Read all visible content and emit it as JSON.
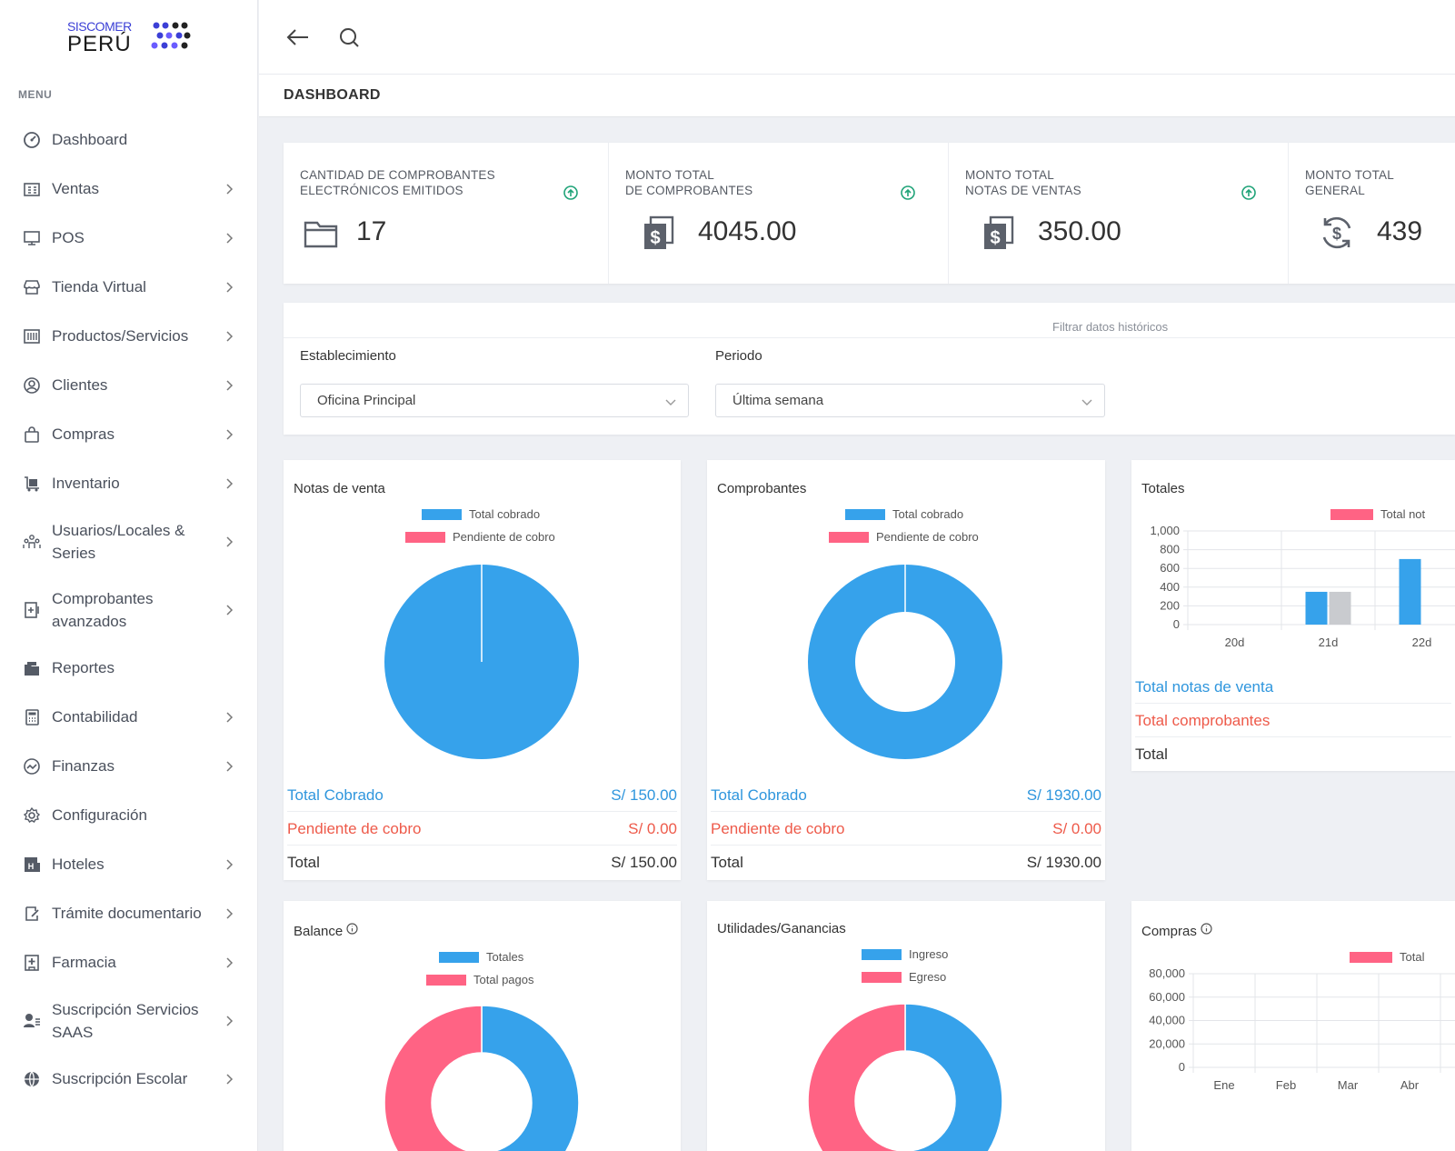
{
  "brand": {
    "top": "SISCOMER",
    "bottom": "PERÚ"
  },
  "sidebar": {
    "menu_title": "MENU",
    "items": [
      {
        "label": "Dashboard",
        "icon": "dashboard-icon",
        "has_children": false
      },
      {
        "label": "Ventas",
        "icon": "ventas-icon",
        "has_children": true
      },
      {
        "label": "POS",
        "icon": "monitor-icon",
        "has_children": true
      },
      {
        "label": "Tienda Virtual",
        "icon": "store-icon",
        "has_children": true
      },
      {
        "label": "Productos/Servicios",
        "icon": "products-icon",
        "has_children": true
      },
      {
        "label": "Clientes",
        "icon": "client-icon",
        "has_children": true
      },
      {
        "label": "Compras",
        "icon": "bag-icon",
        "has_children": true
      },
      {
        "label": "Inventario",
        "icon": "inventory-icon",
        "has_children": true
      },
      {
        "label": "Usuarios/Locales & Series",
        "icon": "users-icon",
        "has_children": true
      },
      {
        "label": "Comprobantes avanzados",
        "icon": "document-advanced-icon",
        "has_children": true
      },
      {
        "label": "Reportes",
        "icon": "reports-icon",
        "has_children": false
      },
      {
        "label": "Contabilidad",
        "icon": "calculator-icon",
        "has_children": true
      },
      {
        "label": "Finanzas",
        "icon": "finance-icon",
        "has_children": true
      },
      {
        "label": "Configuración",
        "icon": "settings-icon",
        "has_children": false
      },
      {
        "label": "Hoteles",
        "icon": "hotel-icon",
        "has_children": true
      },
      {
        "label": "Trámite documentario",
        "icon": "document-edit-icon",
        "has_children": true
      },
      {
        "label": "Farmacia",
        "icon": "pharmacy-icon",
        "has_children": true
      },
      {
        "label": "Suscripción Servicios SAAS",
        "icon": "subscription-icon",
        "has_children": true
      },
      {
        "label": "Suscripción Escolar",
        "icon": "school-icon",
        "has_children": true
      }
    ]
  },
  "header": {
    "title": "DASHBOARD"
  },
  "stats": [
    {
      "label_1": "CANTIDAD DE COMPROBANTES",
      "label_2": "ELECTRÓNICOS EMITIDOS",
      "value": "17",
      "icon": "folder-icon"
    },
    {
      "label_1": "MONTO TOTAL",
      "label_2": "DE COMPROBANTES",
      "value": "4045.00",
      "icon": "money-copy-icon"
    },
    {
      "label_1": "MONTO TOTAL",
      "label_2": "NOTAS DE VENTAS",
      "value": "350.00",
      "icon": "money-copy-icon"
    },
    {
      "label_1": "MONTO TOTAL",
      "label_2": "GENERAL",
      "value": "439",
      "icon": "coin-exchange-icon"
    }
  ],
  "filter": {
    "caption": "Filtrar datos históricos",
    "establecimiento_label": "Establecimiento",
    "establecimiento_value": "Oficina Principal",
    "periodo_label": "Periodo",
    "periodo_value": "Última semana"
  },
  "colors": {
    "blue": "#36a2eb",
    "pink": "#ff6384",
    "grey": "#c9cbcf",
    "accent_blue": "#2f96dd",
    "accent_red": "#ee5a4a"
  },
  "notas_card": {
    "title": "Notas de venta",
    "legend": [
      "Total cobrado",
      "Pendiente de cobro"
    ],
    "rows": [
      {
        "label": "Total Cobrado",
        "value": "S/ 150.00"
      },
      {
        "label": "Pendiente de cobro",
        "value": "S/ 0.00"
      },
      {
        "label": "Total",
        "value": "S/ 150.00"
      }
    ]
  },
  "comprobantes_card": {
    "title": "Comprobantes",
    "legend": [
      "Total cobrado",
      "Pendiente de cobro"
    ],
    "rows": [
      {
        "label": "Total Cobrado",
        "value": "S/ 1930.00"
      },
      {
        "label": "Pendiente de cobro",
        "value": "S/ 0.00"
      },
      {
        "label": "Total",
        "value": "S/ 1930.00"
      }
    ]
  },
  "totales_card": {
    "title": "Totales",
    "legend": [
      "Total not"
    ],
    "rows": [
      "Total notas de venta",
      "Total comprobantes",
      "Total"
    ]
  },
  "balance_card": {
    "title": "Balance",
    "legend": [
      "Totales",
      "Total pagos"
    ]
  },
  "utilidades_card": {
    "title": "Utilidades/Ganancias",
    "legend": [
      "Ingreso",
      "Egreso"
    ]
  },
  "compras_card": {
    "title": "Compras",
    "legend": [
      "Total"
    ]
  },
  "chart_data": [
    {
      "type": "pie",
      "labels": [
        "Total cobrado",
        "Pendiente de cobro"
      ],
      "values": [
        150.0,
        0.0
      ]
    },
    {
      "type": "pie",
      "labels": [
        "Total cobrado",
        "Pendiente de cobro"
      ],
      "values": [
        1930.0,
        0.0
      ]
    },
    {
      "type": "bar",
      "categories": [
        "20d",
        "21d",
        "22d"
      ],
      "y_ticks": [
        "1,000",
        "800",
        "600",
        "400",
        "200",
        "0"
      ],
      "ylim": [
        0,
        1000
      ],
      "series": [
        {
          "values": [
            0,
            350,
            700
          ]
        },
        {
          "values": [
            0,
            350,
            0
          ]
        }
      ],
      "grid": true
    },
    {
      "type": "pie",
      "labels": [
        "Totales",
        "Total pagos"
      ],
      "values": [
        50,
        50
      ]
    },
    {
      "type": "pie",
      "labels": [
        "Ingreso",
        "Egreso"
      ],
      "values": [
        50,
        50
      ]
    },
    {
      "type": "bar",
      "categories": [
        "Ene",
        "Feb",
        "Mar",
        "Abr"
      ],
      "y_ticks": [
        "80,000",
        "60,000",
        "40,000",
        "20,000",
        "0"
      ],
      "ylim": [
        0,
        80000
      ],
      "series": [
        {
          "name": "Total",
          "values": [
            0,
            0,
            0,
            0
          ]
        }
      ],
      "grid": true
    }
  ]
}
